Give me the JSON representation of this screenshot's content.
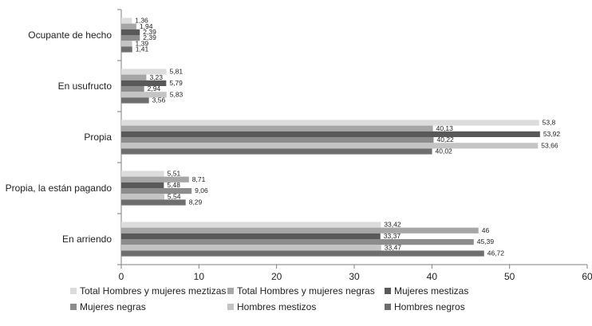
{
  "chart_data": {
    "type": "bar",
    "orientation": "horizontal",
    "categories": [
      "Ocupante de hecho",
      "En usufructo",
      "Propia",
      "Propia, la están pagando",
      "En arriendo"
    ],
    "series": [
      {
        "name": "Total Hombres y mujeres meztizas",
        "color": "#dcdcdc",
        "values": [
          1.36,
          5.81,
          53.8,
          5.51,
          33.42
        ]
      },
      {
        "name": "Total Hombres y mujeres negras",
        "color": "#a6a6a6",
        "values": [
          1.94,
          3.23,
          40.13,
          8.71,
          46
        ]
      },
      {
        "name": "Mujeres mestizas",
        "color": "#595959",
        "values": [
          2.39,
          5.79,
          53.92,
          5.48,
          33.37
        ]
      },
      {
        "name": "Mujeres negras",
        "color": "#8c8c8c",
        "values": [
          2.39,
          2.94,
          40.22,
          9.06,
          45.39
        ]
      },
      {
        "name": "Hombres mestizos",
        "color": "#c4c4c4",
        "values": [
          1.39,
          5.83,
          53.66,
          5.54,
          33.47
        ]
      },
      {
        "name": "Hombres negros",
        "color": "#6e6e6e",
        "values": [
          1.41,
          3.56,
          40.02,
          8.29,
          46.72
        ]
      }
    ],
    "data_labels": [
      [
        "1,36",
        "1,94",
        "2,39",
        "2,39",
        "1,39",
        "1,41"
      ],
      [
        "5,81",
        "3,23",
        "5,79",
        "2,94",
        "5,83",
        "3,56"
      ],
      [
        "53,8",
        "40,13",
        "53,92",
        "40,22",
        "53,66",
        "40,02"
      ],
      [
        "5,51",
        "8,71",
        "5,48",
        "9,06",
        "5,54",
        "8,29"
      ],
      [
        "33,42",
        "46",
        "33,37",
        "45,39",
        "33,47",
        "46,72"
      ]
    ],
    "xlim": [
      0,
      60
    ],
    "x_ticks": [
      "0",
      "10",
      "20",
      "30",
      "40",
      "50",
      "60"
    ],
    "grid": false,
    "legend_position": "bottom"
  }
}
